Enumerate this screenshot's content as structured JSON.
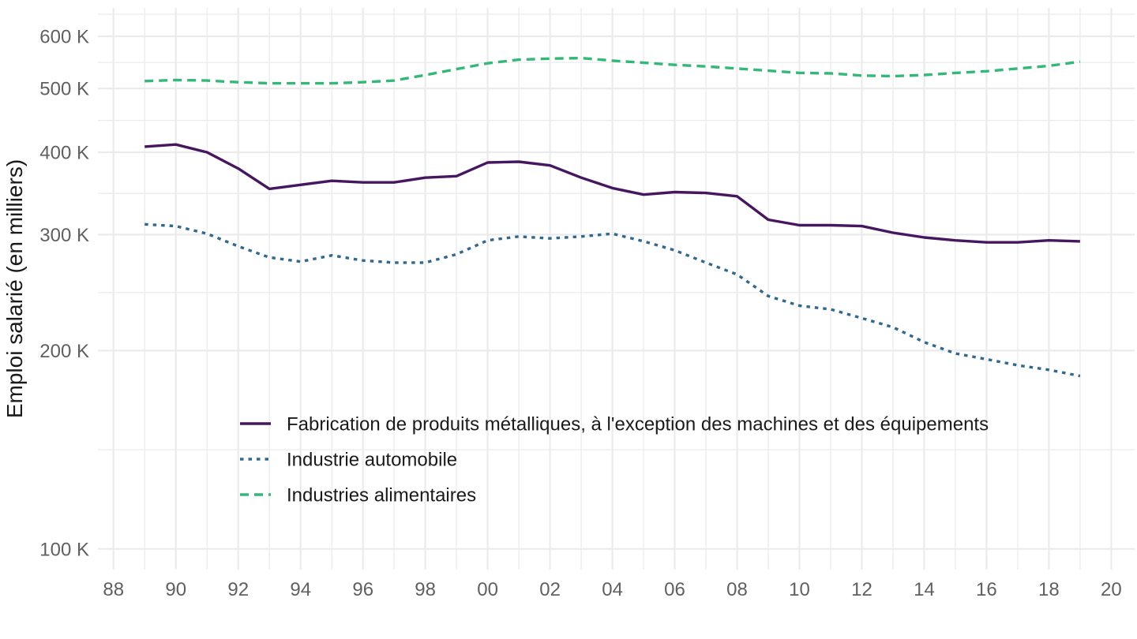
{
  "chart_data": {
    "type": "line",
    "title": "",
    "xlabel": "",
    "ylabel": "Emploi salarié (en milliers)",
    "y_scale": "log10",
    "x": [
      1989,
      1990,
      1991,
      1992,
      1993,
      1994,
      1995,
      1996,
      1997,
      1998,
      1999,
      2000,
      2001,
      2002,
      2003,
      2004,
      2005,
      2006,
      2007,
      2008,
      2009,
      2010,
      2011,
      2012,
      2013,
      2014,
      2015,
      2016,
      2017,
      2018,
      2019
    ],
    "series": [
      {
        "name": "Fabrication de produits métalliques, à l'exception des machines et des équipements",
        "color": "#46175F",
        "linetype": "solid",
        "values": [
          408,
          411,
          400,
          378,
          352,
          357,
          362,
          360,
          360,
          366,
          368,
          386,
          387,
          382,
          366,
          353,
          345,
          348,
          347,
          343,
          316,
          310,
          310,
          309,
          302,
          297,
          294,
          292,
          292,
          294,
          293
        ]
      },
      {
        "name": "Industrie automobile",
        "color": "#31688E",
        "linetype": "dotted",
        "values": [
          311,
          309,
          301,
          288,
          277,
          273,
          279,
          274,
          272,
          272,
          280,
          294,
          298,
          296,
          298,
          301,
          293,
          284,
          272,
          261,
          242,
          234,
          231,
          224,
          217,
          206,
          198,
          194,
          190,
          187,
          183
        ]
      },
      {
        "name": "Industries alimentaires",
        "color": "#35B779",
        "linetype": "dashed",
        "values": [
          513,
          515,
          514,
          511,
          509,
          509,
          509,
          511,
          514,
          524,
          535,
          546,
          553,
          555,
          556,
          551,
          547,
          543,
          540,
          536,
          532,
          528,
          527,
          523,
          522,
          524,
          528,
          531,
          536,
          541,
          549
        ]
      }
    ],
    "x_axis": {
      "ticks": [
        {
          "year": 1988,
          "label": "88"
        },
        {
          "year": 1990,
          "label": "90"
        },
        {
          "year": 1992,
          "label": "92"
        },
        {
          "year": 1994,
          "label": "94"
        },
        {
          "year": 1996,
          "label": "96"
        },
        {
          "year": 1998,
          "label": "98"
        },
        {
          "year": 2000,
          "label": "00"
        },
        {
          "year": 2002,
          "label": "02"
        },
        {
          "year": 2004,
          "label": "04"
        },
        {
          "year": 2006,
          "label": "06"
        },
        {
          "year": 2008,
          "label": "08"
        },
        {
          "year": 2010,
          "label": "10"
        },
        {
          "year": 2012,
          "label": "12"
        },
        {
          "year": 2014,
          "label": "14"
        },
        {
          "year": 2016,
          "label": "16"
        },
        {
          "year": 2018,
          "label": "18"
        },
        {
          "year": 2020,
          "label": "20"
        }
      ],
      "minor_ticks_every_year": true,
      "xlim": [
        1987.5,
        2020.75
      ]
    },
    "y_axis": {
      "ticks": [
        {
          "value": 100,
          "label": "100 K"
        },
        {
          "value": 200,
          "label": "200 K"
        },
        {
          "value": 300,
          "label": "300 K"
        },
        {
          "value": 400,
          "label": "400 K"
        },
        {
          "value": 500,
          "label": "500 K"
        },
        {
          "value": 600,
          "label": "600 K"
        }
      ],
      "unit": "K",
      "ylim_visible": [
        93,
        663
      ]
    },
    "legend_position": "inside-bottom-left",
    "grid": {
      "visible": true,
      "color": "#ebebeb"
    },
    "background_color": "#ffffff",
    "axis_text_color": "#606060"
  }
}
